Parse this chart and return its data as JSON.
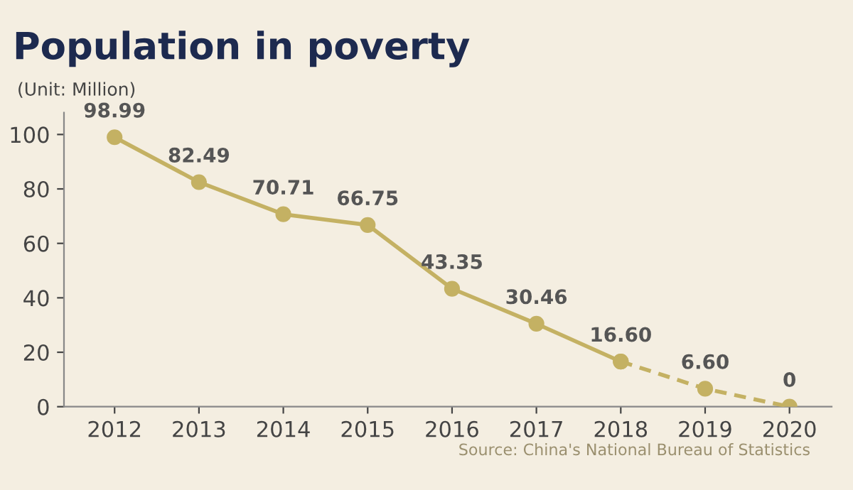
{
  "chart_data": {
    "type": "line",
    "title": "Population in poverty",
    "ylabel": "(Unit: Million)",
    "categories": [
      "2012",
      "2013",
      "2014",
      "2015",
      "2016",
      "2017",
      "2018",
      "2019",
      "2020"
    ],
    "series": [
      {
        "color": "#c4b163",
        "line_style": "solid",
        "values": [
          98.99,
          82.49,
          70.71,
          66.75,
          43.35,
          30.46,
          16.6,
          null,
          null
        ],
        "value_labels": [
          "98.99",
          "82.49",
          "70.71",
          "66.75",
          "43.35",
          "30.46",
          "16.60",
          null,
          null
        ]
      },
      {
        "color": "#c4b163",
        "line_style": "dashed",
        "values": [
          null,
          null,
          null,
          null,
          null,
          null,
          16.6,
          6.6,
          0
        ],
        "value_labels": [
          null,
          null,
          null,
          null,
          null,
          null,
          null,
          "6.60",
          "0"
        ]
      }
    ],
    "ylim": [
      0,
      108
    ],
    "yticks": [
      0,
      20,
      40,
      60,
      80,
      100
    ],
    "grid": false,
    "marker": "circle",
    "legend": false,
    "annotations": [
      "Source: China's National Bureau of Statistics"
    ]
  }
}
